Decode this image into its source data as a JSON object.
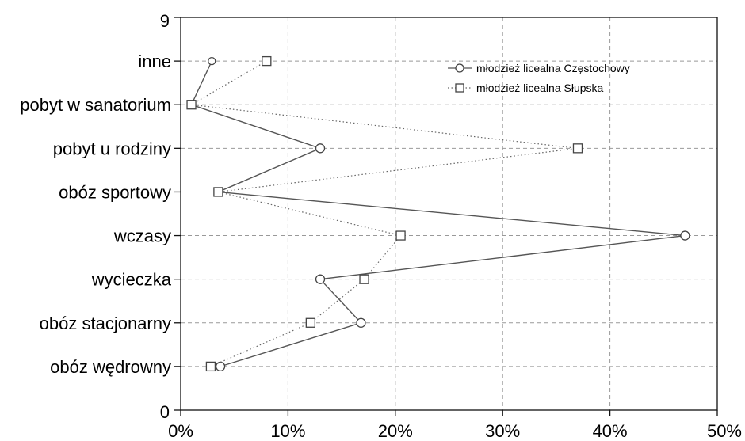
{
  "chart_data": {
    "type": "line",
    "orientation": "horizontal",
    "title": "",
    "xlabel": "",
    "ylabel": "",
    "categories": [
      "obóz wędrowny",
      "obóz stacjonarny",
      "wycieczka",
      "wczasy",
      "obóz sportowy",
      "pobyt u rodziny",
      "pobyt w sanatorium",
      "inne"
    ],
    "x_ticks": [
      "0%",
      "10%",
      "20%",
      "30%",
      "40%",
      "50%"
    ],
    "x_range": [
      0,
      50
    ],
    "y_ticks": [
      "0",
      "9"
    ],
    "y_range": [
      0,
      9
    ],
    "grid": true,
    "legend_position": "top-right",
    "series": [
      {
        "name": "młodzież licealna Częstochowy",
        "marker": "circle",
        "line_style": "solid",
        "values": [
          3.7,
          16.8,
          13.0,
          47.0,
          3.5,
          13.0,
          1.0,
          2.9
        ]
      },
      {
        "name": "młodzież licealna Słupska",
        "marker": "square",
        "line_style": "dotted",
        "values": [
          2.8,
          12.1,
          17.1,
          20.5,
          3.5,
          37.0,
          1.0,
          8.0
        ]
      }
    ]
  }
}
